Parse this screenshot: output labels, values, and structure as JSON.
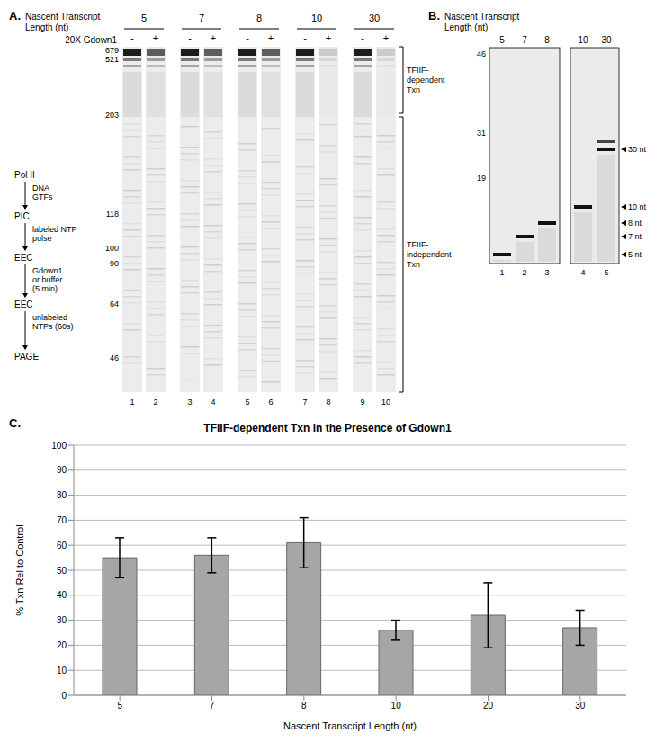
{
  "panel_a": {
    "label": "A.",
    "header": [
      "Nascent Transcript",
      "Length (nt)"
    ],
    "treatment": "20X Gdown1",
    "groups": [
      {
        "length": "5",
        "lanes": [
          "-",
          "+"
        ],
        "numbers": [
          1,
          2
        ]
      },
      {
        "length": "7",
        "lanes": [
          "-",
          "+"
        ],
        "numbers": [
          3,
          4
        ]
      },
      {
        "length": "8",
        "lanes": [
          "-",
          "+"
        ],
        "numbers": [
          5,
          6
        ]
      },
      {
        "length": "10",
        "lanes": [
          "-",
          "+"
        ],
        "numbers": [
          7,
          8
        ]
      },
      {
        "length": "30",
        "lanes": [
          "-",
          "+"
        ],
        "numbers": [
          9,
          10
        ]
      }
    ],
    "markers": [
      679,
      521,
      203,
      118,
      100,
      90,
      64,
      46
    ],
    "brackets": [
      [
        "TFIIF-",
        "dependent",
        "Txn"
      ],
      [
        "TFIIF-",
        "independent",
        "Txn"
      ]
    ],
    "flow": {
      "steps": [
        "Pol II",
        "PIC",
        "EEC",
        "EEC",
        "PAGE"
      ],
      "arrows": [
        [
          "DNA",
          "GTFs"
        ],
        [
          "labeled NTP",
          "pulse"
        ],
        [
          "Gdown1",
          "or buffer",
          "(5 min)"
        ],
        [
          "unlabeled",
          "NTPs (60s)"
        ]
      ]
    }
  },
  "panel_b": {
    "label": "B.",
    "header": [
      "Nascent Transcript",
      "Length (nt)"
    ],
    "lanes": [
      "5",
      "7",
      "8",
      "10",
      "30"
    ],
    "numbers": [
      1,
      2,
      3,
      4,
      5
    ],
    "markers": [
      46,
      31,
      19
    ],
    "arrows": [
      "30 nt",
      "10 nt",
      "8 nt",
      "7 nt",
      "5 nt"
    ]
  },
  "panel_c": {
    "label": "C."
  },
  "chart_data": {
    "type": "bar",
    "title": "TFIIF-dependent Txn in the Presence of Gdown1",
    "x_label": "Nascent Transcript Length (nt)",
    "y_label": "% Txn Rel to Control",
    "categories": [
      "5",
      "7",
      "8",
      "10",
      "20",
      "30"
    ],
    "values": [
      55,
      56,
      61,
      26,
      32,
      27
    ],
    "errors": [
      8,
      7,
      10,
      4,
      13,
      7
    ],
    "color": "#a6a6a6",
    "ylim": [
      0,
      100
    ],
    "yticks": [
      0,
      10,
      20,
      30,
      40,
      50,
      60,
      70,
      80,
      90,
      100
    ],
    "grid": true
  }
}
